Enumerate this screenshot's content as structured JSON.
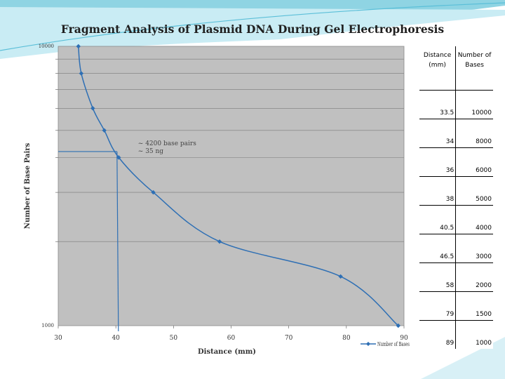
{
  "chart_data": {
    "type": "line",
    "title": "Fragment Analysis of Plasmid DNA During Gel Electrophoresis",
    "xlabel": "Distance (mm)",
    "ylabel": "Number of Base Pairs",
    "xlim": [
      30,
      90
    ],
    "ylim": [
      1000,
      10000
    ],
    "yscale": "log",
    "xticks": [
      "30",
      "40",
      "50",
      "60",
      "70",
      "80",
      "90"
    ],
    "yticks": [
      "10000",
      "1000"
    ],
    "grid": true,
    "legend": "Number of Bases",
    "series": [
      {
        "name": "Number of Bases",
        "x": [
          33.5,
          34,
          36,
          38,
          40.5,
          46.5,
          58,
          79,
          89
        ],
        "values": [
          10000,
          8000,
          6000,
          5000,
          4000,
          3000,
          2000,
          1500,
          1000
        ]
      }
    ],
    "annotation": {
      "lines": [
        "~ 4200 base pairs",
        "~ 35 ng"
      ],
      "x": 40.2,
      "y": 4200
    },
    "colors": {
      "series": "#2e6fb4",
      "plot_bg": "#c0c0c0",
      "accent": "#5bbfd8"
    }
  },
  "table": {
    "headers": [
      "Distance (mm)",
      "Number of Bases"
    ],
    "rows": [
      [
        "33.5",
        "10000"
      ],
      [
        "34",
        "8000"
      ],
      [
        "36",
        "6000"
      ],
      [
        "38",
        "5000"
      ],
      [
        "40.5",
        "4000"
      ],
      [
        "46.5",
        "3000"
      ],
      [
        "58",
        "2000"
      ],
      [
        "79",
        "1500"
      ],
      [
        "89",
        "1000"
      ]
    ]
  }
}
